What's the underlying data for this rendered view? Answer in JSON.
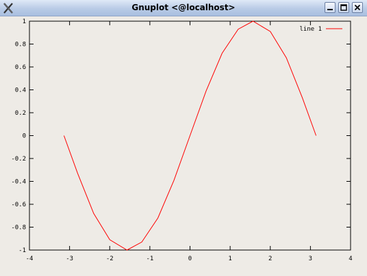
{
  "window": {
    "title": "Gnuplot <@localhost>",
    "icons": [
      "x11-app-icon",
      "minimize-icon",
      "maximize-icon",
      "close-icon"
    ]
  },
  "chart_data": {
    "type": "line",
    "title": "",
    "xlabel": "",
    "ylabel": "",
    "xlim": [
      -4,
      4
    ],
    "ylim": [
      -1,
      1
    ],
    "x_ticks": [
      "-4",
      "-3",
      "-2",
      "-1",
      "0",
      "1",
      "2",
      "3",
      "4"
    ],
    "y_ticks": [
      "1",
      "0.8",
      "0.6",
      "0.4",
      "0.2",
      "0",
      "-0.2",
      "-0.4",
      "-0.6",
      "-0.8",
      "-1"
    ],
    "grid": false,
    "legend_placement": "top-right",
    "series": [
      {
        "name": "line 1",
        "color": "#ff0000",
        "x": [
          -3.14,
          -2.8,
          -2.4,
          -2.0,
          -1.57,
          -1.2,
          -0.8,
          -0.4,
          0,
          0.4,
          0.8,
          1.2,
          1.57,
          2.0,
          2.4,
          2.8,
          3.14
        ],
        "y": [
          0,
          -0.33,
          -0.68,
          -0.91,
          -1.0,
          -0.93,
          -0.72,
          -0.39,
          0,
          0.39,
          0.72,
          0.93,
          1.0,
          0.91,
          0.68,
          0.33,
          0
        ]
      }
    ]
  }
}
